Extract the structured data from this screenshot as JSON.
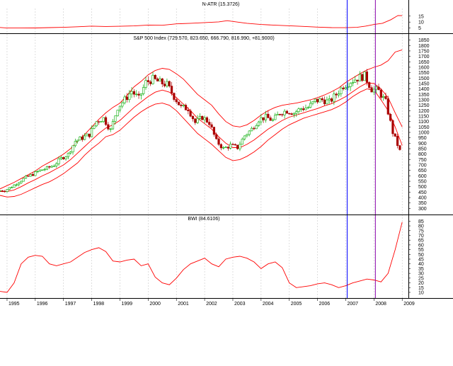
{
  "chart_data": [
    {
      "type": "line",
      "title": "N-ATR (15.3726)",
      "y_ticks": [
        5,
        10,
        15
      ],
      "ylim": [
        3,
        19
      ],
      "grid": "vertical dotted",
      "series": [
        {
          "x": [
            1994.75,
            1995.0,
            1995.5,
            1996.0,
            1996.5,
            1997.0,
            1997.5,
            1998.0,
            1998.5,
            1999.0,
            1999.5,
            2000.0,
            2000.5,
            2001.0,
            2001.5,
            2002.0,
            2002.5,
            2002.8,
            2003.0,
            2003.5,
            2004.0,
            2004.5,
            2005.0,
            2005.5,
            2006.0,
            2006.5,
            2007.0,
            2007.4,
            2007.7,
            2008.0,
            2008.3,
            2008.6,
            2008.85,
            2009.0
          ],
          "values": [
            5.5,
            5.0,
            5.0,
            5.1,
            5.4,
            5.6,
            6.1,
            6.6,
            6.3,
            6.5,
            6.8,
            7.5,
            7.3,
            8.5,
            9.0,
            9.6,
            10.2,
            11.2,
            10.5,
            9.0,
            8.0,
            7.4,
            6.9,
            6.4,
            5.8,
            5.4,
            5.3,
            5.6,
            6.6,
            8.0,
            9.0,
            12.0,
            15.5,
            15.4
          ]
        }
      ],
      "colors": {
        "line": "#ff0000"
      }
    },
    {
      "type": "candlestick",
      "title": "S&P 500 Index (729.570, 823.650, 666.790, 816.990, +81.9000)",
      "x_ticks": [
        "1995",
        "1996",
        "1997",
        "1998",
        "1999",
        "2000",
        "2001",
        "2002",
        "2003",
        "2004",
        "2005",
        "2006",
        "2007",
        "2008",
        "2009"
      ],
      "y_ticks": [
        300,
        350,
        400,
        450,
        500,
        550,
        600,
        650,
        700,
        750,
        800,
        850,
        900,
        950,
        1000,
        1050,
        1100,
        1150,
        1200,
        1250,
        1300,
        1350,
        1400,
        1450,
        1500,
        1550,
        1600,
        1650,
        1700,
        1750,
        1800,
        1850
      ],
      "ylim": [
        270,
        1880
      ],
      "grid": "vertical dotted",
      "monthly_close_x": [
        1994.75,
        1995.0,
        1995.25,
        1995.5,
        1995.75,
        1996.0,
        1996.25,
        1996.5,
        1996.75,
        1997.0,
        1997.25,
        1997.5,
        1997.75,
        1998.0,
        1998.25,
        1998.5,
        1998.75,
        1999.0,
        1999.25,
        1999.5,
        1999.75,
        2000.0,
        2000.25,
        2000.5,
        2000.75,
        2001.0,
        2001.25,
        2001.5,
        2001.75,
        2002.0,
        2002.25,
        2002.5,
        2002.75,
        2003.0,
        2003.25,
        2003.5,
        2003.75,
        2004.0,
        2004.25,
        2004.5,
        2004.75,
        2005.0,
        2005.25,
        2005.5,
        2005.75,
        2006.0,
        2006.25,
        2006.5,
        2006.75,
        2007.0,
        2007.25,
        2007.5,
        2007.75,
        2008.0,
        2008.25,
        2008.5,
        2008.75,
        2009.0
      ],
      "monthly_close": [
        462,
        465,
        500,
        545,
        585,
        615,
        650,
        670,
        700,
        760,
        800,
        920,
        950,
        980,
        1100,
        1130,
        1020,
        1230,
        1300,
        1380,
        1310,
        1460,
        1490,
        1460,
        1440,
        1330,
        1230,
        1220,
        1090,
        1140,
        1090,
        920,
        850,
        880,
        860,
        970,
        1030,
        1120,
        1140,
        1110,
        1180,
        1200,
        1180,
        1220,
        1230,
        1290,
        1300,
        1280,
        1350,
        1430,
        1470,
        1500,
        1520,
        1400,
        1380,
        1280,
        1000,
        830
      ],
      "lower_band": [
        420,
        405,
        410,
        430,
        460,
        490,
        520,
        545,
        580,
        620,
        670,
        720,
        790,
        850,
        900,
        960,
        980,
        1020,
        1080,
        1140,
        1190,
        1230,
        1260,
        1270,
        1250,
        1200,
        1130,
        1060,
        990,
        940,
        890,
        830,
        770,
        740,
        750,
        780,
        820,
        870,
        930,
        980,
        1030,
        1070,
        1100,
        1130,
        1150,
        1170,
        1190,
        1210,
        1240,
        1280,
        1330,
        1370,
        1400,
        1390,
        1300,
        1200,
        1050,
        880
      ],
      "middle_band": [
        455,
        455,
        470,
        500,
        535,
        565,
        600,
        630,
        665,
        700,
        750,
        810,
        870,
        930,
        990,
        1040,
        1070,
        1110,
        1170,
        1230,
        1280,
        1330,
        1370,
        1390,
        1370,
        1320,
        1260,
        1200,
        1130,
        1080,
        1030,
        960,
        900,
        860,
        860,
        890,
        930,
        980,
        1030,
        1070,
        1110,
        1140,
        1160,
        1180,
        1200,
        1220,
        1245,
        1265,
        1295,
        1330,
        1375,
        1420,
        1455,
        1450,
        1400,
        1320,
        1180,
        1050
      ],
      "upper_band": [
        480,
        510,
        540,
        575,
        610,
        645,
        690,
        725,
        760,
        800,
        850,
        920,
        980,
        1050,
        1120,
        1180,
        1230,
        1270,
        1340,
        1420,
        1470,
        1530,
        1570,
        1590,
        1580,
        1540,
        1490,
        1420,
        1350,
        1300,
        1250,
        1170,
        1100,
        1060,
        1050,
        1070,
        1110,
        1160,
        1200,
        1230,
        1250,
        1260,
        1270,
        1285,
        1300,
        1320,
        1345,
        1375,
        1410,
        1460,
        1500,
        1540,
        1575,
        1600,
        1620,
        1660,
        1740,
        1760
      ],
      "colors": {
        "up": "#00aa00",
        "down": "#aa0000",
        "bands": "#ff0000"
      }
    },
    {
      "type": "line",
      "title": "BWI (84.6106)",
      "x_ticks": [
        "1995",
        "1996",
        "1997",
        "1998",
        "1999",
        "2000",
        "2001",
        "2002",
        "2003",
        "2004",
        "2005",
        "2006",
        "2007",
        "2008",
        "2009"
      ],
      "y_ticks": [
        10,
        15,
        20,
        25,
        30,
        35,
        40,
        45,
        50,
        55,
        60,
        65,
        70,
        75,
        80,
        85
      ],
      "ylim": [
        7,
        89
      ],
      "grid": "vertical dotted",
      "series": [
        {
          "x": [
            1994.75,
            1995.0,
            1995.25,
            1995.5,
            1995.75,
            1996.0,
            1996.25,
            1996.5,
            1996.75,
            1997.0,
            1997.25,
            1997.5,
            1997.75,
            1998.0,
            1998.25,
            1998.5,
            1998.75,
            1999.0,
            1999.25,
            1999.5,
            1999.75,
            2000.0,
            2000.25,
            2000.5,
            2000.75,
            2001.0,
            2001.25,
            2001.5,
            2001.75,
            2002.0,
            2002.25,
            2002.5,
            2002.75,
            2003.0,
            2003.25,
            2003.5,
            2003.75,
            2004.0,
            2004.25,
            2004.5,
            2004.75,
            2005.0,
            2005.25,
            2005.5,
            2005.75,
            2006.0,
            2006.25,
            2006.5,
            2006.75,
            2007.0,
            2007.25,
            2007.5,
            2007.75,
            2008.0,
            2008.25,
            2008.5,
            2008.75,
            2009.0
          ],
          "values": [
            11,
            10,
            20,
            40,
            47,
            49,
            48,
            40,
            38,
            40,
            42,
            47,
            52,
            55,
            57,
            53,
            43,
            42,
            44,
            45,
            38,
            40,
            26,
            20,
            18,
            25,
            34,
            40,
            43,
            46,
            40,
            37,
            45,
            47,
            48,
            46,
            42,
            35,
            40,
            42,
            36,
            20,
            15,
            16,
            17,
            19,
            20,
            18,
            15,
            17,
            20,
            22,
            24,
            23,
            21,
            30,
            55,
            84
          ]
        }
      ],
      "colors": {
        "line": "#ff0000"
      }
    }
  ],
  "markers": [
    {
      "x": 2007.05,
      "color": "#0000ff"
    },
    {
      "x": 2008.05,
      "color": "#8800aa"
    }
  ]
}
